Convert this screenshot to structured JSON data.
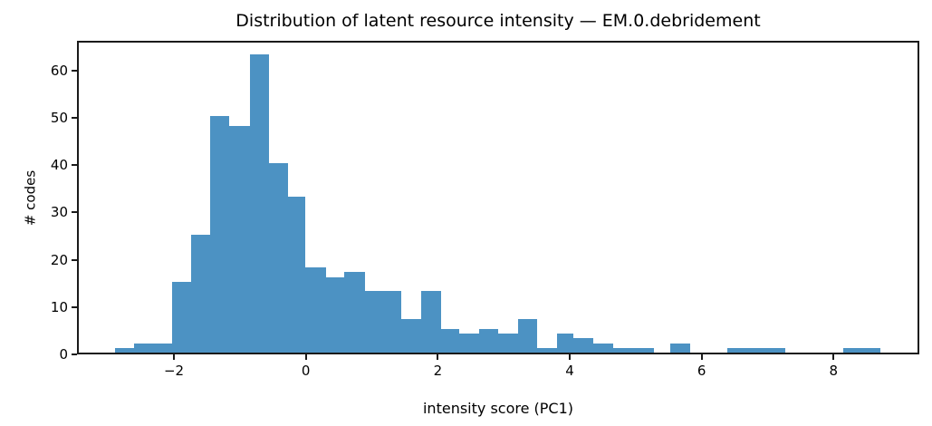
{
  "figure": {
    "title": "Distribution of latent resource intensity — EM.0.debridement",
    "xlabel": "intensity score (PC1)",
    "ylabel": "# codes",
    "background_color": "#ffffff",
    "bar_color": "#4c92c3",
    "axis_color": "#1a1a1a",
    "text_color": "#000000"
  },
  "chart_data": {
    "type": "bar",
    "subtype": "histogram",
    "title": "Distribution of latent resource intensity — EM.0.debridement",
    "xlabel": "intensity score (PC1)",
    "ylabel": "# codes",
    "xlim": [
      -3.47,
      9.3
    ],
    "ylim": [
      0,
      66.3
    ],
    "xticks": [
      {
        "value": -2,
        "label": "−2"
      },
      {
        "value": 0,
        "label": "0"
      },
      {
        "value": 2,
        "label": "2"
      },
      {
        "value": 4,
        "label": "4"
      },
      {
        "value": 6,
        "label": "6"
      },
      {
        "value": 8,
        "label": "8"
      }
    ],
    "yticks": [
      {
        "value": 0,
        "label": "0"
      },
      {
        "value": 10,
        "label": "10"
      },
      {
        "value": 20,
        "label": "20"
      },
      {
        "value": 30,
        "label": "30"
      },
      {
        "value": 40,
        "label": "40"
      },
      {
        "value": 50,
        "label": "50"
      },
      {
        "value": 60,
        "label": "60"
      }
    ],
    "grid": false,
    "legend": false,
    "bin_width_approx": 0.29,
    "bars": [
      {
        "x0": -2.89,
        "x1": -2.6,
        "count": 1
      },
      {
        "x0": -2.6,
        "x1": -2.31,
        "count": 2
      },
      {
        "x0": -2.31,
        "x1": -2.03,
        "count": 2
      },
      {
        "x0": -2.03,
        "x1": -1.74,
        "count": 15
      },
      {
        "x0": -1.74,
        "x1": -1.45,
        "count": 25
      },
      {
        "x0": -1.45,
        "x1": -1.16,
        "count": 50
      },
      {
        "x0": -1.16,
        "x1": -0.85,
        "count": 48
      },
      {
        "x0": -0.85,
        "x1": -0.56,
        "count": 63
      },
      {
        "x0": -0.56,
        "x1": -0.27,
        "count": 40
      },
      {
        "x0": -0.27,
        "x1": -0.01,
        "count": 33
      },
      {
        "x0": -0.01,
        "x1": 0.31,
        "count": 18
      },
      {
        "x0": 0.31,
        "x1": 0.58,
        "count": 16
      },
      {
        "x0": 0.58,
        "x1": 0.89,
        "count": 17
      },
      {
        "x0": 0.89,
        "x1": 1.17,
        "count": 13
      },
      {
        "x0": 1.17,
        "x1": 1.45,
        "count": 13
      },
      {
        "x0": 1.45,
        "x1": 1.75,
        "count": 7
      },
      {
        "x0": 1.75,
        "x1": 2.05,
        "count": 13
      },
      {
        "x0": 2.05,
        "x1": 2.33,
        "count": 5
      },
      {
        "x0": 2.33,
        "x1": 2.62,
        "count": 4
      },
      {
        "x0": 2.62,
        "x1": 2.92,
        "count": 5
      },
      {
        "x0": 2.92,
        "x1": 3.22,
        "count": 4
      },
      {
        "x0": 3.22,
        "x1": 3.51,
        "count": 7
      },
      {
        "x0": 3.51,
        "x1": 3.81,
        "count": 1
      },
      {
        "x0": 3.81,
        "x1": 4.06,
        "count": 4
      },
      {
        "x0": 4.06,
        "x1": 4.36,
        "count": 3
      },
      {
        "x0": 4.36,
        "x1": 4.66,
        "count": 2
      },
      {
        "x0": 4.66,
        "x1": 4.97,
        "count": 1
      },
      {
        "x0": 4.97,
        "x1": 5.28,
        "count": 1
      },
      {
        "x0": 5.52,
        "x1": 5.83,
        "count": 2
      },
      {
        "x0": 6.39,
        "x1": 6.68,
        "count": 1
      },
      {
        "x0": 6.68,
        "x1": 6.97,
        "count": 1
      },
      {
        "x0": 6.97,
        "x1": 7.27,
        "count": 1
      },
      {
        "x0": 8.14,
        "x1": 8.43,
        "count": 1
      },
      {
        "x0": 8.43,
        "x1": 8.71,
        "count": 1
      }
    ]
  }
}
